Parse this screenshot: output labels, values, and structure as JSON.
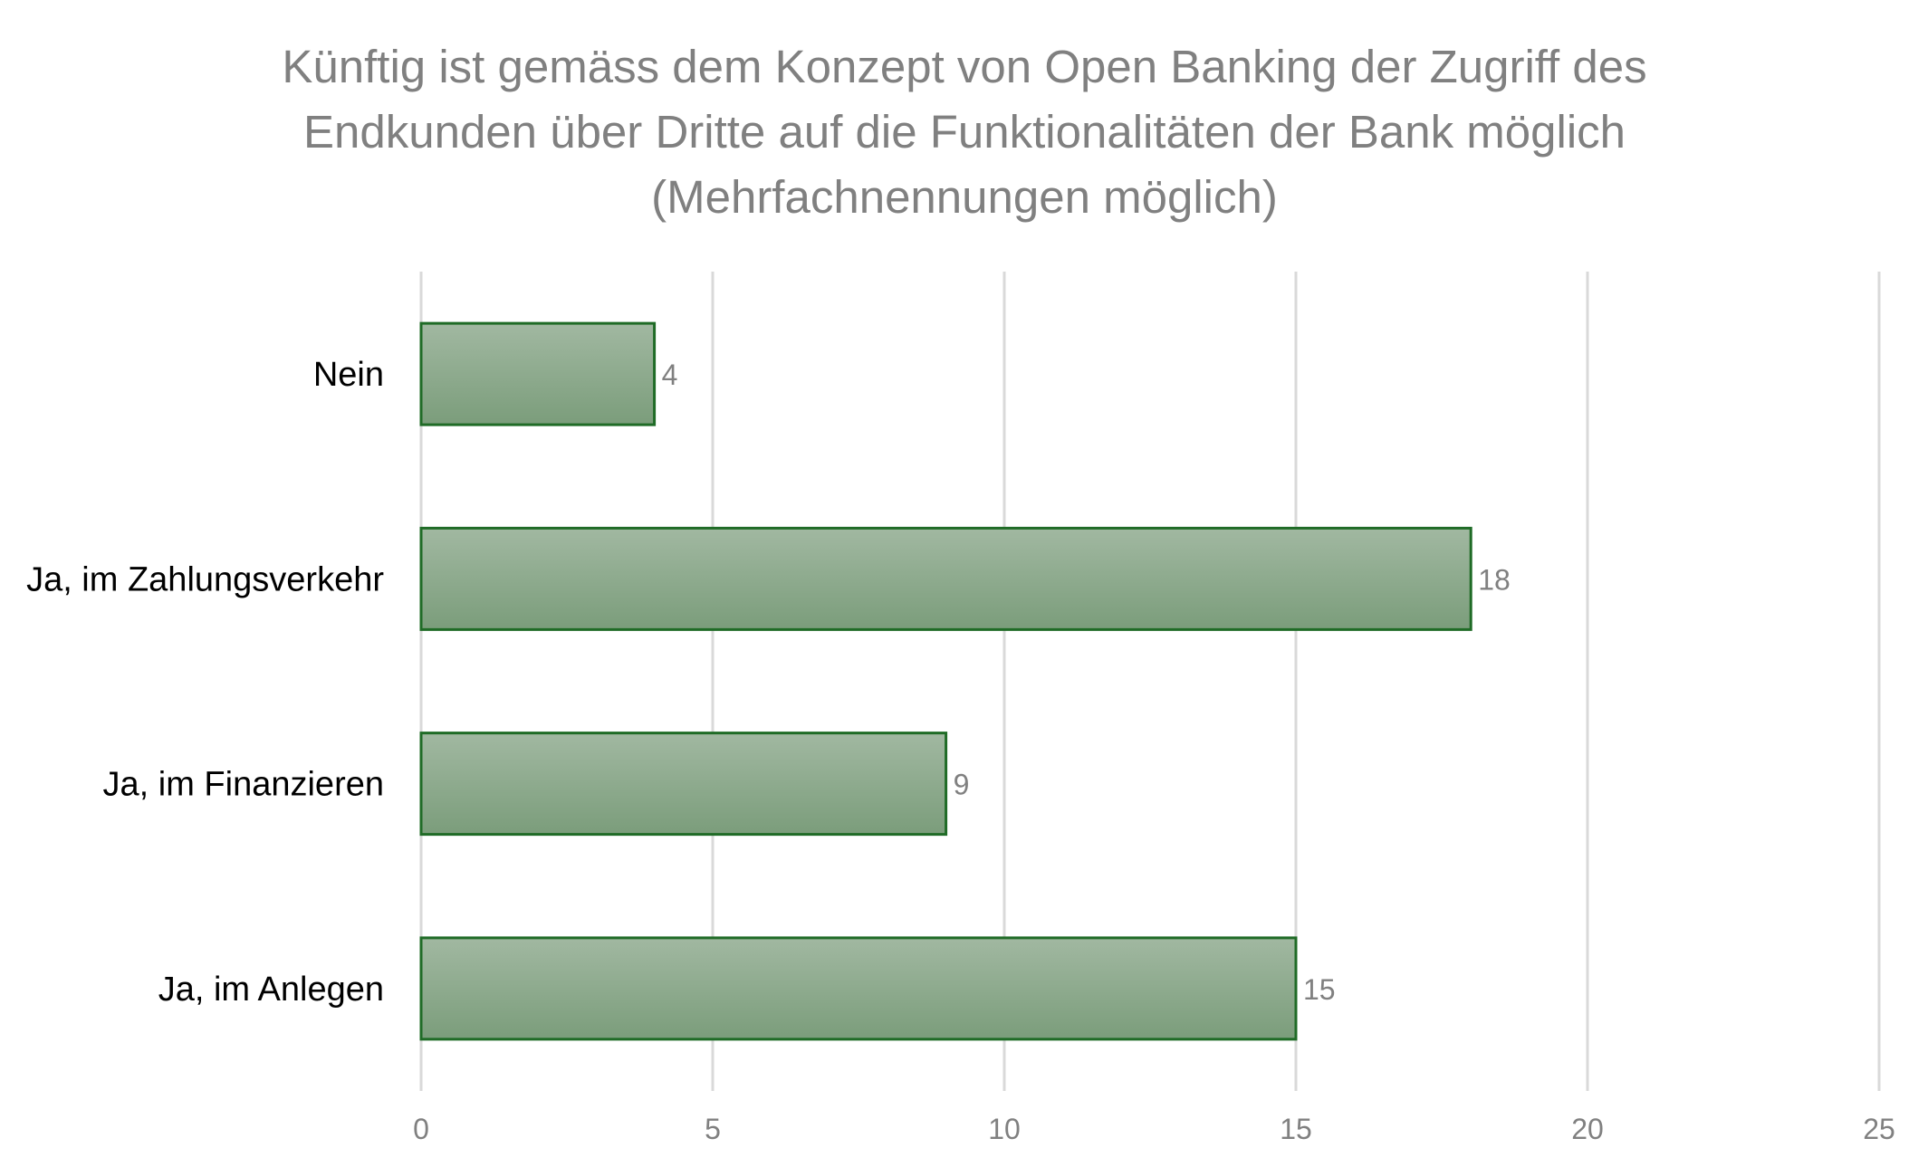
{
  "chart_data": {
    "type": "bar",
    "orientation": "horizontal",
    "title_lines": [
      "Künftig ist gemäss dem Konzept von Open Banking der Zugriff des",
      "Endkunden über Dritte auf die Funktionalitäten der Bank möglich",
      "(Mehrfachnennungen möglich)"
    ],
    "categories": [
      "Nein",
      "Ja, im Zahlungsverkehr",
      "Ja, im Finanzieren",
      "Ja, im Anlegen"
    ],
    "values": [
      4,
      18,
      9,
      15
    ],
    "data_labels": [
      "4",
      "18",
      "9",
      "15"
    ],
    "xlim": [
      0,
      25
    ],
    "x_ticks": [
      0,
      5,
      10,
      15,
      20,
      25
    ],
    "x_tick_labels": [
      "0",
      "5",
      "10",
      "15",
      "20",
      "25"
    ],
    "grid": "vertical",
    "legend": "none",
    "colors": {
      "bar_fill_top": "#a1b8a1",
      "bar_fill_bottom": "#7b9d7b",
      "bar_border": "#1f6b26",
      "grid": "#d9d9d9",
      "title": "#808080",
      "category_label": "#000000",
      "value_label": "#808080",
      "tick_label": "#808080"
    }
  }
}
